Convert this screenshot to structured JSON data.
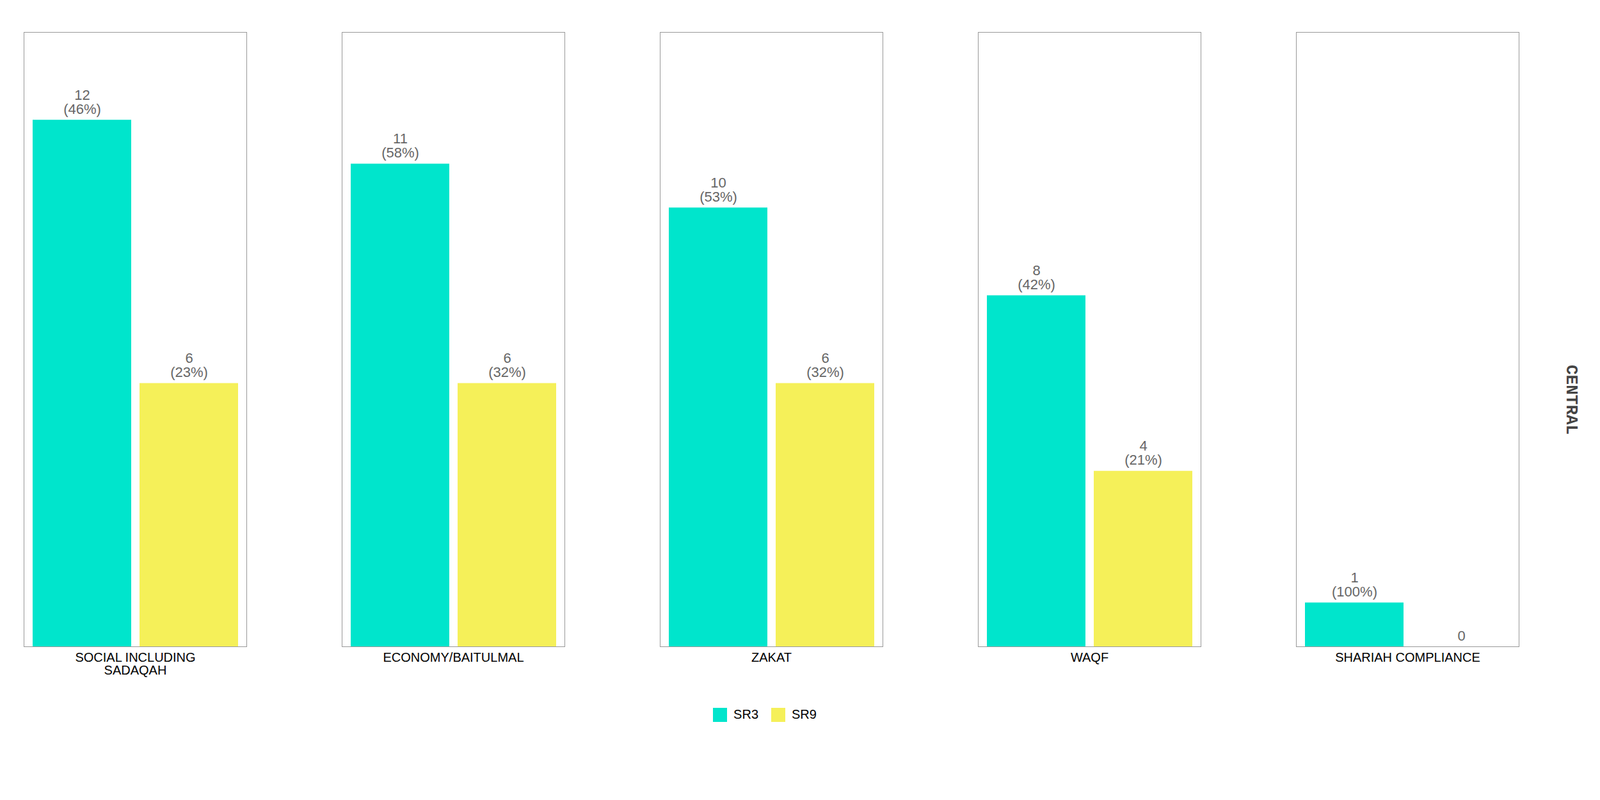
{
  "chart_data": {
    "type": "bar",
    "categories": [
      "SOCIAL INCLUDING\nSADAQAH",
      "ECONOMY/BAITULMAL",
      "ZAKAT",
      "WAQF",
      "SHARIAH COMPLIANCE"
    ],
    "series": [
      {
        "name": "SR3",
        "color": "#00E5CC",
        "values": [
          12,
          11,
          10,
          8,
          1
        ],
        "value_labels": [
          "12\n(46%)",
          "11\n(58%)",
          "10\n(53%)",
          "8\n(42%)",
          "1\n(100%)"
        ]
      },
      {
        "name": "SR9",
        "color": "#F5F059",
        "values": [
          6,
          6,
          6,
          4,
          0
        ],
        "value_labels": [
          "6\n(23%)",
          "6\n(32%)",
          "6\n(32%)",
          "4\n(21%)",
          "0"
        ]
      }
    ],
    "ylim": [
      0,
      14
    ],
    "tick_labels": "x",
    "grid": false,
    "legend": "bottom",
    "data_labels": true,
    "annotations": [
      "CENTRAL"
    ]
  }
}
